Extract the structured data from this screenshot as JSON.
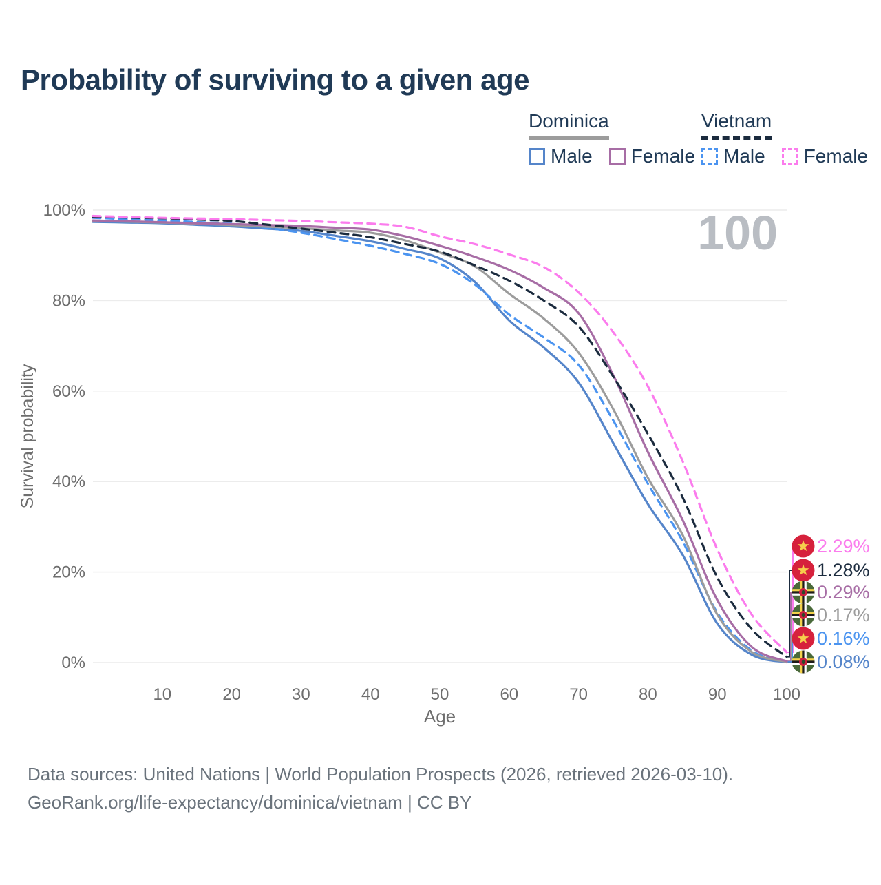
{
  "page": {
    "title": "Probability of surviving to a given age",
    "watermark": "100"
  },
  "legend": {
    "groups": [
      {
        "country": "Dominica",
        "line_style": "solid",
        "underline_color": "#9c9c9c",
        "items": [
          {
            "label": "Male",
            "color": "#5585ca",
            "dashed": false
          },
          {
            "label": "Female",
            "color": "#a76da5",
            "dashed": false
          }
        ]
      },
      {
        "country": "Vietnam",
        "line_style": "dashed",
        "underline_color": "#1b2b3e",
        "items": [
          {
            "label": "Male",
            "color": "#4b94f0",
            "dashed": true
          },
          {
            "label": "Female",
            "color": "#fb7ced",
            "dashed": true
          }
        ]
      }
    ]
  },
  "footer": {
    "line1": "Data sources: United Nations | World Population Prospects (2026, retrieved 2026-03-10).",
    "line2": "GeoRank.org/life-expectancy/dominica/vietnam | CC BY"
  },
  "chart_data": {
    "type": "line",
    "title": "Probability of surviving to a given age",
    "xlabel": "Age",
    "ylabel": "Survival probability",
    "xlim": [
      0,
      100
    ],
    "ylim": [
      0,
      100
    ],
    "grid": "horizontal",
    "gridline_color": "#ececec",
    "tick_color": "#6e6e6e",
    "watermark": "100",
    "watermark_color": "#b9bdc3",
    "x_ticks": [
      10,
      20,
      30,
      40,
      50,
      60,
      70,
      80,
      90,
      100
    ],
    "y_ticks": [
      0,
      20,
      40,
      60,
      80,
      100
    ],
    "y_tick_labels": [
      "0%",
      "20%",
      "40%",
      "60%",
      "80%",
      "100%"
    ],
    "ages": [
      0,
      5,
      10,
      15,
      20,
      25,
      30,
      35,
      40,
      45,
      50,
      55,
      60,
      65,
      70,
      75,
      80,
      85,
      90,
      95,
      100
    ],
    "series": [
      {
        "id": "vietnam-female",
        "name": "Vietnam Female",
        "country": "Vietnam",
        "sex": "Female",
        "color": "#fb7ced",
        "dashed": true,
        "flag": "vietnam",
        "end_label": "2.29%",
        "end_value": 2.29,
        "values": [
          98.7,
          98.5,
          98.3,
          98.15,
          98.0,
          97.8,
          97.6,
          97.3,
          97.0,
          96.3,
          94.2,
          92.5,
          90.2,
          87.4,
          81.8,
          73.0,
          61.0,
          44.5,
          25.0,
          10.5,
          2.29
        ]
      },
      {
        "id": "vietnam-total",
        "name": "Vietnam",
        "country": "Vietnam",
        "sex": "Both",
        "color": "#1b2b3e",
        "dashed": true,
        "flag": "vietnam",
        "end_label": "1.28%",
        "end_value": 1.28,
        "values": [
          98.5,
          98.35,
          98.2,
          97.9,
          97.6,
          96.8,
          95.9,
          95.0,
          94.0,
          92.5,
          90.8,
          87.8,
          84.4,
          80.0,
          74.3,
          63.2,
          50.5,
          36.5,
          18.8,
          7.3,
          1.28
        ]
      },
      {
        "id": "dominica-female",
        "name": "Dominica Female",
        "country": "Dominica",
        "sex": "Female",
        "color": "#a76da5",
        "dashed": false,
        "flag": "dominica",
        "end_label": "0.29%",
        "end_value": 0.29,
        "values": [
          97.7,
          97.5,
          97.3,
          97.1,
          96.9,
          96.7,
          96.5,
          96.1,
          95.7,
          94.2,
          92.1,
          89.7,
          86.8,
          82.8,
          77.2,
          63.5,
          46.5,
          31.5,
          13.8,
          3.4,
          0.29
        ]
      },
      {
        "id": "dominica-total",
        "name": "Dominica",
        "country": "Dominica",
        "sex": "Both",
        "color": "#9c9c9c",
        "dashed": false,
        "flag": "dominica",
        "end_label": "0.17%",
        "end_value": 0.17,
        "values": [
          97.6,
          97.45,
          97.25,
          97.0,
          96.7,
          96.35,
          96.0,
          95.5,
          95.0,
          93.3,
          90.6,
          87.6,
          81.5,
          76.0,
          68.5,
          56.0,
          40.8,
          28.2,
          10.6,
          2.3,
          0.17
        ]
      },
      {
        "id": "vietnam-male",
        "name": "Vietnam Male",
        "country": "Vietnam",
        "sex": "Male",
        "color": "#4b94f0",
        "dashed": true,
        "flag": "vietnam",
        "end_label": "0.16%",
        "end_value": 0.16,
        "values": [
          98.3,
          98.0,
          97.7,
          97.35,
          97.0,
          96.1,
          95.0,
          93.6,
          92.1,
          90.3,
          88.1,
          83.6,
          76.9,
          71.8,
          65.8,
          53.5,
          39.5,
          26.8,
          11.0,
          2.6,
          0.16
        ]
      },
      {
        "id": "dominica-male",
        "name": "Dominica Male",
        "country": "Dominica",
        "sex": "Male",
        "color": "#5585ca",
        "dashed": false,
        "flag": "dominica",
        "end_label": "0.08%",
        "end_value": 0.08,
        "values": [
          97.4,
          97.25,
          97.1,
          96.75,
          96.4,
          95.9,
          95.4,
          94.3,
          93.1,
          91.4,
          89.3,
          84.2,
          75.6,
          69.6,
          61.9,
          48.5,
          35.0,
          23.8,
          8.6,
          1.7,
          0.08
        ]
      }
    ],
    "flag_colors": {
      "vietnam_red": "#d6213c",
      "vietnam_star": "#f6ce4c",
      "dominica_green": "#4a6a3a",
      "dominica_yellow": "#f3d24b",
      "dominica_black": "#1e1a1a",
      "dominica_white": "#ffffff",
      "dominica_center_red": "#cb1f3e",
      "dominica_parrot": "#2e4a2a"
    }
  }
}
